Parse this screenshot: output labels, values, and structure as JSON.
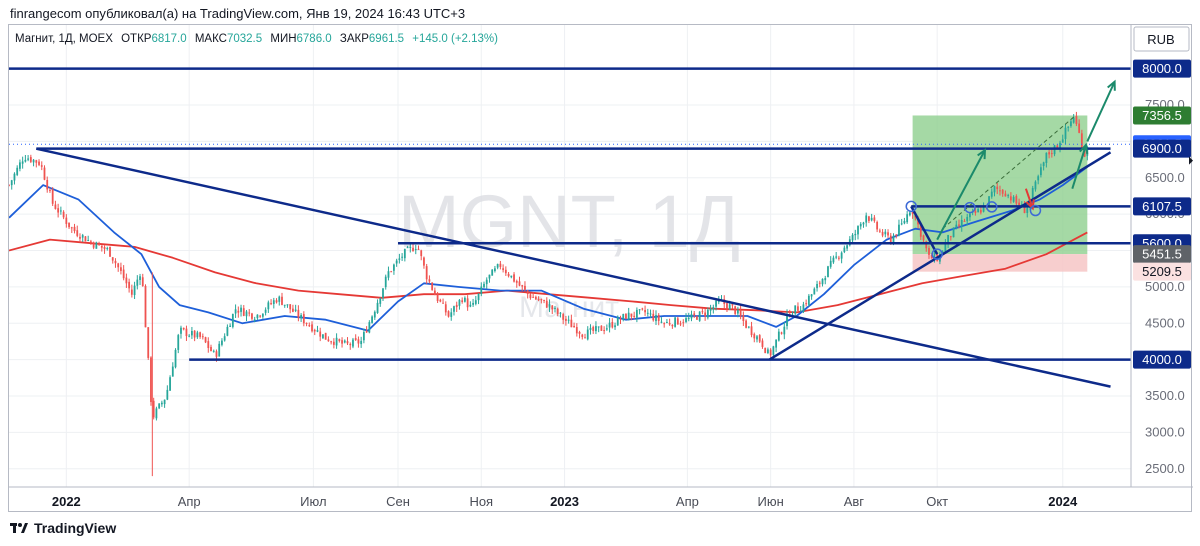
{
  "header": {
    "published_text": "finrangecom опубликовал(а) на TradingView.com, Янв 19, 2024 16:43 UTC+3"
  },
  "footer": {
    "brand": "TradingView"
  },
  "chart_data": {
    "type": "candlestick",
    "symbol": "MGNT, 1Д",
    "watermark_sub": "Магнит",
    "legend": {
      "name": "Магнит, 1Д, MOEX",
      "open_label": "ОТКР",
      "open": "6817.0",
      "high_label": "МАКС",
      "high": "7032.5",
      "low_label": "МИН",
      "low": "6786.0",
      "close_label": "ЗАКР",
      "close": "6961.5",
      "change": "+145.0 (+2.13%)"
    },
    "currency": "RUB",
    "y_ticks": [
      2500,
      3000,
      3500,
      4000,
      4500,
      5000,
      5500,
      6000,
      6500,
      7000,
      7500,
      8000
    ],
    "y_tick_labels": [
      "2500.0",
      "3000.0",
      "3500.0",
      "4000.0",
      "4500.0",
      "5000.0",
      "5500.0",
      "6000.0",
      "6500.0",
      "7000.0",
      "7500.0",
      "8000.0"
    ],
    "x_labels": [
      {
        "label": "2022",
        "date": "2022-01-01",
        "bold": true
      },
      {
        "label": "Апр",
        "date": "2022-04-01",
        "bold": false
      },
      {
        "label": "Июл",
        "date": "2022-07-01",
        "bold": false
      },
      {
        "label": "Сен",
        "date": "2022-09-01",
        "bold": false
      },
      {
        "label": "Ноя",
        "date": "2022-11-01",
        "bold": false
      },
      {
        "label": "2023",
        "date": "2023-01-01",
        "bold": true
      },
      {
        "label": "Апр",
        "date": "2023-04-01",
        "bold": false
      },
      {
        "label": "Июн",
        "date": "2023-06-01",
        "bold": false
      },
      {
        "label": "Авг",
        "date": "2023-08-01",
        "bold": false
      },
      {
        "label": "Окт",
        "date": "2023-10-01",
        "bold": false
      },
      {
        "label": "2024",
        "date": "2024-01-01",
        "bold": true
      }
    ],
    "price_path": [
      [
        "2021-11-20",
        6400
      ],
      [
        "2021-12-01",
        6800
      ],
      [
        "2021-12-13",
        6700
      ],
      [
        "2021-12-22",
        6150
      ],
      [
        "2022-01-05",
        5800
      ],
      [
        "2022-01-20",
        5600
      ],
      [
        "2022-02-01",
        5500
      ],
      [
        "2022-02-10",
        5200
      ],
      [
        "2022-02-18",
        4900
      ],
      [
        "2022-02-25",
        5250
      ],
      [
        "2022-03-05",
        3200
      ],
      [
        "2022-03-15",
        3500
      ],
      [
        "2022-03-25",
        4400
      ],
      [
        "2022-04-10",
        4300
      ],
      [
        "2022-04-20",
        4050
      ],
      [
        "2022-05-05",
        4700
      ],
      [
        "2022-05-20",
        4600
      ],
      [
        "2022-06-05",
        4850
      ],
      [
        "2022-06-20",
        4600
      ],
      [
        "2022-07-10",
        4300
      ],
      [
        "2022-07-25",
        4200
      ],
      [
        "2022-08-05",
        4250
      ],
      [
        "2022-08-15",
        4700
      ],
      [
        "2022-08-25",
        5200
      ],
      [
        "2022-09-05",
        5450
      ],
      [
        "2022-09-15",
        5580
      ],
      [
        "2022-09-22",
        5150
      ],
      [
        "2022-09-28",
        4900
      ],
      [
        "2022-10-08",
        4600
      ],
      [
        "2022-10-18",
        4850
      ],
      [
        "2022-10-25",
        4700
      ],
      [
        "2022-11-05",
        5100
      ],
      [
        "2022-11-15",
        5300
      ],
      [
        "2022-11-25",
        5100
      ],
      [
        "2022-12-05",
        4900
      ],
      [
        "2022-12-20",
        4750
      ],
      [
        "2023-01-01",
        4550
      ],
      [
        "2023-01-15",
        4350
      ],
      [
        "2023-02-01",
        4450
      ],
      [
        "2023-02-15",
        4600
      ],
      [
        "2023-03-01",
        4650
      ],
      [
        "2023-03-15",
        4500
      ],
      [
        "2023-04-01",
        4550
      ],
      [
        "2023-04-15",
        4650
      ],
      [
        "2023-04-25",
        4800
      ],
      [
        "2023-05-05",
        4700
      ],
      [
        "2023-05-15",
        4450
      ],
      [
        "2023-05-25",
        4250
      ],
      [
        "2023-05-31",
        4050
      ],
      [
        "2023-06-05",
        4250
      ],
      [
        "2023-06-15",
        4650
      ],
      [
        "2023-06-25",
        4750
      ],
      [
        "2023-07-05",
        5000
      ],
      [
        "2023-07-15",
        5300
      ],
      [
        "2023-07-25",
        5550
      ],
      [
        "2023-08-01",
        5700
      ],
      [
        "2023-08-10",
        6000
      ],
      [
        "2023-08-20",
        5750
      ],
      [
        "2023-08-28",
        5650
      ],
      [
        "2023-09-05",
        5850
      ],
      [
        "2023-09-12",
        6100
      ],
      [
        "2023-09-18",
        5800
      ],
      [
        "2023-09-25",
        5400
      ],
      [
        "2023-10-02",
        5400
      ],
      [
        "2023-10-10",
        5700
      ],
      [
        "2023-10-20",
        5900
      ],
      [
        "2023-10-28",
        6000
      ],
      [
        "2023-11-05",
        6100
      ],
      [
        "2023-11-12",
        6350
      ],
      [
        "2023-11-20",
        6300
      ],
      [
        "2023-11-28",
        6150
      ],
      [
        "2023-12-05",
        6050
      ],
      [
        "2023-12-12",
        6400
      ],
      [
        "2023-12-20",
        6800
      ],
      [
        "2023-12-28",
        6950
      ],
      [
        "2024-01-05",
        7200
      ],
      [
        "2024-01-09",
        7350
      ],
      [
        "2024-01-13",
        7100
      ],
      [
        "2024-01-17",
        6820
      ],
      [
        "2024-01-19",
        6961.5
      ]
    ],
    "ma_fast": [
      [
        "2021-11-20",
        5950
      ],
      [
        "2021-12-15",
        6400
      ],
      [
        "2022-01-10",
        6200
      ],
      [
        "2022-02-05",
        5750
      ],
      [
        "2022-02-25",
        5450
      ],
      [
        "2022-03-10",
        5000
      ],
      [
        "2022-03-25",
        4750
      ],
      [
        "2022-04-15",
        4650
      ],
      [
        "2022-05-10",
        4500
      ],
      [
        "2022-06-10",
        4600
      ],
      [
        "2022-07-10",
        4550
      ],
      [
        "2022-08-10",
        4400
      ],
      [
        "2022-09-01",
        4800
      ],
      [
        "2022-09-20",
        5050
      ],
      [
        "2022-10-15",
        5000
      ],
      [
        "2022-11-15",
        4950
      ],
      [
        "2022-12-15",
        4950
      ],
      [
        "2023-01-15",
        4700
      ],
      [
        "2023-02-15",
        4550
      ],
      [
        "2023-03-15",
        4600
      ],
      [
        "2023-04-15",
        4600
      ],
      [
        "2023-05-15",
        4600
      ],
      [
        "2023-06-05",
        4450
      ],
      [
        "2023-06-20",
        4600
      ],
      [
        "2023-07-10",
        4900
      ],
      [
        "2023-08-01",
        5300
      ],
      [
        "2023-08-25",
        5650
      ],
      [
        "2023-09-15",
        5800
      ],
      [
        "2023-10-05",
        5750
      ],
      [
        "2023-10-30",
        5900
      ],
      [
        "2023-11-25",
        6050
      ],
      [
        "2023-12-15",
        6200
      ],
      [
        "2024-01-01",
        6400
      ],
      [
        "2024-01-19",
        6650
      ]
    ],
    "ma_slow": [
      [
        "2021-11-20",
        5500
      ],
      [
        "2021-12-20",
        5650
      ],
      [
        "2022-01-20",
        5600
      ],
      [
        "2022-02-20",
        5550
      ],
      [
        "2022-03-20",
        5400
      ],
      [
        "2022-04-20",
        5200
      ],
      [
        "2022-05-20",
        5050
      ],
      [
        "2022-06-20",
        4950
      ],
      [
        "2022-07-20",
        4900
      ],
      [
        "2022-08-20",
        4850
      ],
      [
        "2022-09-20",
        4900
      ],
      [
        "2022-10-20",
        4900
      ],
      [
        "2022-11-20",
        4950
      ],
      [
        "2022-12-20",
        4900
      ],
      [
        "2023-01-20",
        4850
      ],
      [
        "2023-02-20",
        4800
      ],
      [
        "2023-03-20",
        4750
      ],
      [
        "2023-04-20",
        4700
      ],
      [
        "2023-05-20",
        4680
      ],
      [
        "2023-06-20",
        4650
      ],
      [
        "2023-07-20",
        4750
      ],
      [
        "2023-08-20",
        4900
      ],
      [
        "2023-09-20",
        5050
      ],
      [
        "2023-10-20",
        5150
      ],
      [
        "2023-11-20",
        5250
      ],
      [
        "2023-12-20",
        5450
      ],
      [
        "2024-01-19",
        5750
      ]
    ],
    "levels": [
      8000,
      6107.5,
      5600,
      4000
    ],
    "level_starts": {
      "8000": "2021-11-20",
      "6107.5": "2023-09-12",
      "5600": "2022-09-01",
      "4000": "2022-04-01"
    },
    "badges": [
      {
        "label": "8000.0",
        "value": 8000,
        "kind": "level"
      },
      {
        "label": "7356.5",
        "value": 7356.5,
        "kind": "green"
      },
      {
        "label": "6961.5",
        "value": 6961.5,
        "kind": "last"
      },
      {
        "label": "6900.0",
        "value": 6900,
        "kind": "level"
      },
      {
        "label": "6107.5",
        "value": 6107.5,
        "kind": "level"
      },
      {
        "label": "5600.0",
        "value": 5600,
        "kind": "level"
      },
      {
        "label": "5451.5",
        "value": 5451.5,
        "kind": "gray"
      },
      {
        "label": "5209.5",
        "value": 5209.5,
        "kind": "red"
      },
      {
        "label": "4000.0",
        "value": 4000,
        "kind": "level"
      }
    ],
    "position": {
      "start": "2023-09-13",
      "end": "2024-01-19",
      "target": 7356.5,
      "entry": 5451.5,
      "stop": 5209.5
    },
    "trendlines": [
      {
        "from": [
          "2021-12-10",
          6900
        ],
        "to": [
          "2024-02-05",
          6900
        ]
      },
      {
        "from": [
          "2021-12-10",
          6900
        ],
        "to": [
          "2024-02-05",
          3630
        ]
      },
      {
        "from": [
          "2023-05-31",
          4000
        ],
        "to": [
          "2024-02-05",
          6850
        ]
      },
      {
        "from": [
          "2023-09-12",
          6107.5
        ],
        "to": [
          "2023-10-01",
          5450
        ]
      }
    ],
    "arrows": [
      {
        "from": [
          "2023-10-01",
          5650
        ],
        "to": [
          "2023-11-05",
          6880
        ],
        "color": "#1b8a6b"
      },
      {
        "from": [
          "2024-01-08",
          6350
        ],
        "to": [
          "2024-01-18",
          6950
        ],
        "color": "#1b8a6b"
      },
      {
        "from": [
          "2024-01-19",
          7000
        ],
        "to": [
          "2024-02-08",
          7820
        ],
        "color": "#1b8a6b"
      },
      {
        "from": [
          "2023-12-05",
          6350
        ],
        "to": [
          "2023-12-10",
          6080
        ],
        "color": "#e53935"
      }
    ],
    "circles": [
      [
        "2023-09-12",
        6107.5
      ],
      [
        "2023-10-01",
        5450
      ],
      [
        "2023-10-25",
        6090
      ],
      [
        "2023-11-10",
        6100
      ],
      [
        "2023-12-12",
        6050
      ]
    ],
    "dashed_lines": [
      {
        "from": [
          "2023-10-05",
          5800
        ],
        "to": [
          "2024-01-10",
          7350
        ]
      }
    ],
    "colors": {
      "up": "#26a69a",
      "down": "#ef5350",
      "level": "#0d2a8a",
      "ma_fast": "#1e5fd9",
      "ma_slow": "#e53935",
      "target_zone": "#8fd08f",
      "stop_zone": "#f6c6c6",
      "last_price": "#2962ff",
      "arrow_up": "#1b8a6b"
    }
  }
}
